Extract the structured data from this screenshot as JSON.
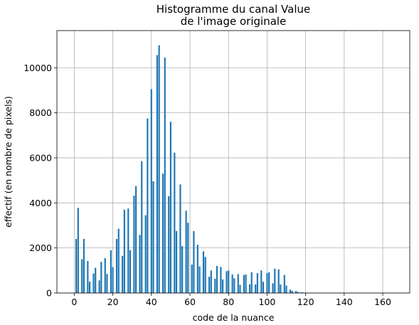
{
  "chart_data": {
    "type": "bar",
    "title": [
      "Histogramme du canal Value",
      "de l'image originale"
    ],
    "xlabel": "code de la nuance",
    "ylabel": "effectif (en nombre de pixels)",
    "xlim": [
      -9,
      174
    ],
    "ylim": [
      0,
      11650
    ],
    "xticks": [
      0,
      20,
      40,
      60,
      80,
      100,
      120,
      140,
      160
    ],
    "yticks": [
      0,
      2000,
      4000,
      6000,
      8000,
      10000
    ],
    "grid": true,
    "bar_color": "#1f77b4",
    "x": [
      1,
      2,
      4,
      5,
      7,
      8,
      10,
      11,
      13,
      14,
      16,
      17,
      19,
      20,
      22,
      23,
      25,
      26,
      28,
      29,
      31,
      32,
      34,
      35,
      37,
      38,
      40,
      41,
      43,
      44,
      46,
      47,
      49,
      50,
      52,
      53,
      55,
      56,
      58,
      59,
      61,
      62,
      64,
      65,
      67,
      68,
      70,
      71,
      73,
      74,
      76,
      77,
      79,
      80,
      82,
      83,
      85,
      86,
      88,
      89,
      91,
      92,
      94,
      95,
      97,
      98,
      100,
      101,
      103,
      104,
      106,
      107,
      109,
      110,
      112,
      113,
      115,
      116,
      118,
      119,
      121,
      122,
      124,
      125,
      127,
      128,
      130,
      131,
      133,
      134
    ],
    "values": [
      2400,
      3780,
      1500,
      2400,
      1420,
      500,
      870,
      1120,
      560,
      1380,
      1550,
      850,
      1900,
      1150,
      2400,
      2850,
      1650,
      3700,
      3750,
      1900,
      4320,
      4750,
      2580,
      5850,
      3450,
      7750,
      9050,
      4960,
      10560,
      11000,
      5300,
      10450,
      4300,
      7600,
      6230,
      2750,
      4820,
      2080,
      3650,
      3120,
      1260,
      2750,
      2140,
      1180,
      1850,
      1600,
      720,
      1000,
      630,
      1200,
      1160,
      600,
      970,
      1000,
      820,
      650,
      840,
      360,
      800,
      820,
      390,
      920,
      380,
      880,
      1000,
      500,
      880,
      920,
      430,
      1080,
      1050,
      380,
      800,
      330,
      150,
      100,
      90,
      50,
      30,
      20,
      10,
      5,
      0,
      0,
      0,
      0,
      0,
      0,
      0,
      0
    ],
    "bar_width": 0.8
  }
}
